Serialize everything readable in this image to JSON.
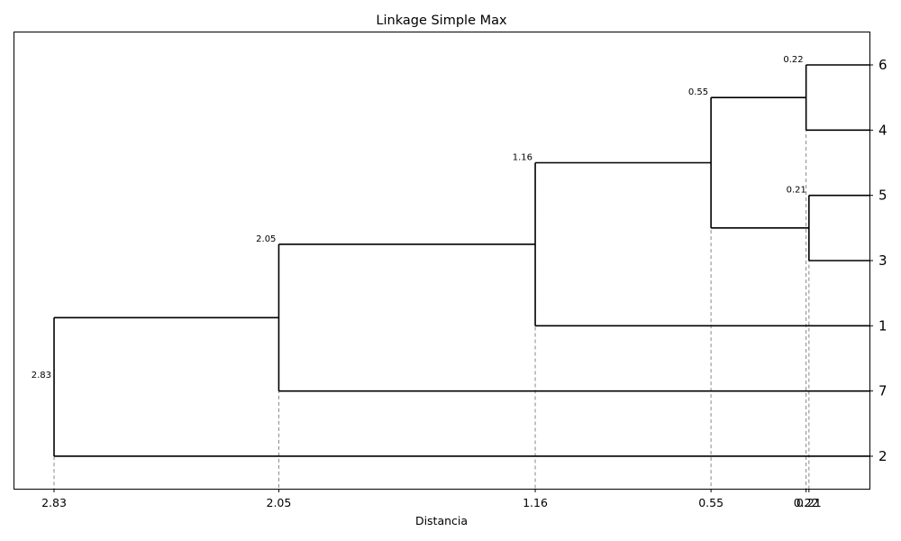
{
  "chart_data": {
    "type": "dendrogram",
    "title": "Linkage Simple Max",
    "xlabel": "Distancia",
    "x_axis_reversed": true,
    "xlim": [
      2.83,
      0.0
    ],
    "leaves": [
      "6",
      "4",
      "5",
      "3",
      "1",
      "7",
      "2"
    ],
    "merges": [
      {
        "left": "5",
        "right": "3",
        "height": 0.21,
        "label": "0.21"
      },
      {
        "left": "6",
        "right": "4",
        "height": 0.22,
        "label": "0.22"
      },
      {
        "left": "6-4",
        "right": "5-3",
        "height": 0.55,
        "label": "0.55"
      },
      {
        "left": "6-4-5-3",
        "right": "1",
        "height": 1.16,
        "label": "1.16"
      },
      {
        "left": "6-4-5-3-1",
        "right": "7",
        "height": 2.05,
        "label": "2.05"
      },
      {
        "left": "6-4-5-3-1-7",
        "right": "2",
        "height": 2.83,
        "label": "2.83"
      }
    ],
    "x_ticks": [
      {
        "value": 2.83,
        "label": "2.83"
      },
      {
        "value": 2.05,
        "label": "2.05"
      },
      {
        "value": 1.16,
        "label": "1.16"
      },
      {
        "value": 0.55,
        "label": "0.55"
      },
      {
        "value": 0.22,
        "label": "0.22"
      },
      {
        "value": 0.21,
        "label": "0.21"
      }
    ],
    "reference_lines": "dashed vertical lines at each merge distance",
    "colors": {
      "branch": "#000000",
      "reference": "#888888",
      "frame": "#000000"
    }
  }
}
